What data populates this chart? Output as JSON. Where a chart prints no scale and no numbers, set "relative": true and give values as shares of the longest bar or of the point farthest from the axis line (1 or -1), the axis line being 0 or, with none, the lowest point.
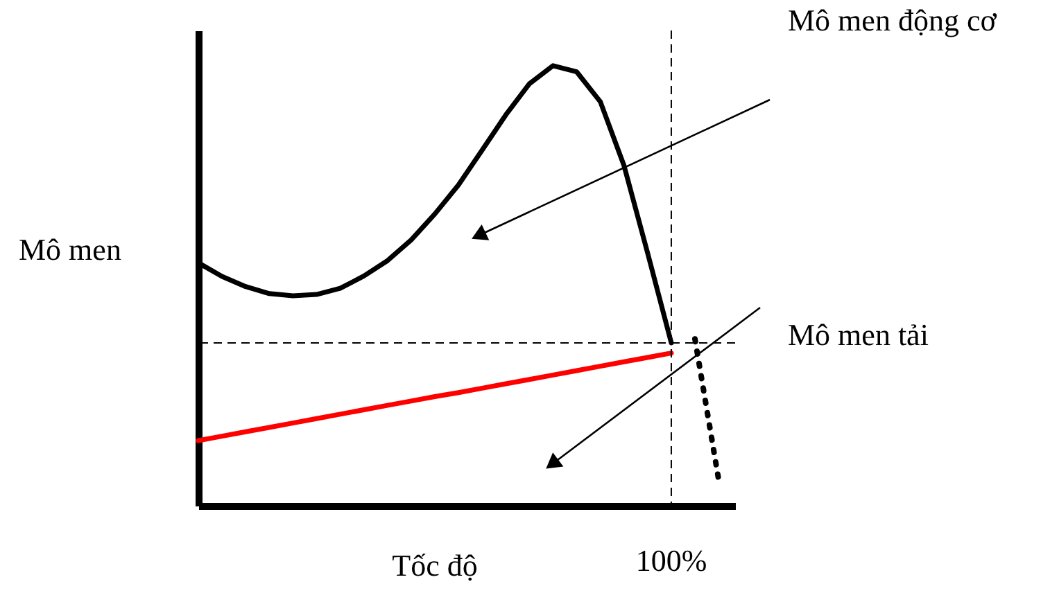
{
  "chart_data": {
    "type": "line",
    "relative": true,
    "xlabel": "Tốc độ",
    "ylabel": "Mô men",
    "grid": false,
    "marker": "none",
    "categories": [
      null,
      null,
      null,
      null,
      null,
      null,
      null,
      null,
      null,
      null,
      null,
      null,
      null,
      null,
      null,
      null,
      null,
      null,
      null,
      null,
      null,
      null,
      null
    ],
    "series": [
      {
        "color": "#000000",
        "line_style": "solid",
        "values": [
          0.552,
          0.521,
          0.498,
          0.482,
          0.477,
          0.48,
          0.494,
          0.522,
          0.557,
          0.604,
          0.663,
          0.729,
          0.808,
          0.888,
          0.959,
          1.0,
          0.986,
          0.918,
          0.773,
          0.574,
          0.37,
          null,
          null
        ]
      },
      {
        "color": "#ff0000",
        "line_style": "solid",
        "values": [
          0.148,
          0.158,
          0.168,
          0.178,
          0.188,
          0.198,
          0.208,
          0.218,
          0.228,
          0.238,
          0.248,
          0.257,
          0.267,
          0.277,
          0.287,
          0.297,
          0.307,
          0.317,
          0.327,
          0.337,
          0.347,
          null,
          null
        ]
      },
      {
        "color": "#000000",
        "line_style": "dotted",
        "values": [
          null,
          null,
          null,
          null,
          null,
          null,
          null,
          null,
          null,
          null,
          null,
          null,
          null,
          null,
          null,
          null,
          null,
          null,
          null,
          null,
          null,
          0.379,
          0.06
        ]
      }
    ],
    "ref_lines": [
      {
        "axis": "x",
        "label": "100%",
        "color": "#000000",
        "line_style": "dashed"
      },
      {
        "axis": "y",
        "value": 0.37,
        "color": "#000000",
        "line_style": "dashed"
      }
    ],
    "annotations": [
      "Mô men động cơ",
      "Mô men tải"
    ]
  }
}
